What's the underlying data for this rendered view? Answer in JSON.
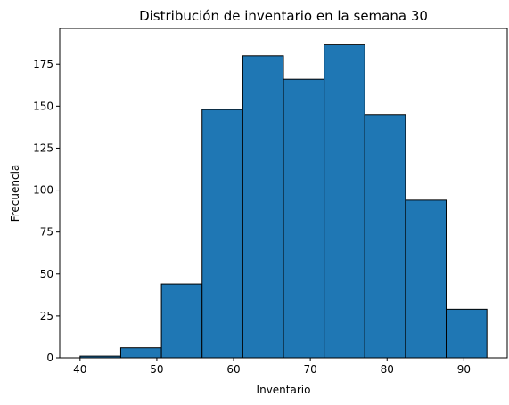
{
  "chart_data": {
    "type": "bar",
    "title": "Distribución de inventario en la semana 30",
    "xlabel": "Inventario",
    "ylabel": "Frecuencia",
    "xlim": [
      37.35,
      95.65
    ],
    "ylim": [
      0,
      196.35
    ],
    "xticks": [
      "40",
      "50",
      "60",
      "70",
      "80",
      "90"
    ],
    "yticks": [
      "0",
      "25",
      "50",
      "75",
      "100",
      "125",
      "150",
      "175"
    ],
    "bin_edges": [
      40,
      45.3,
      50.6,
      55.9,
      61.2,
      66.5,
      71.8,
      77.1,
      82.4,
      87.7,
      93
    ],
    "values": [
      1,
      6,
      44,
      148,
      180,
      166,
      187,
      145,
      94,
      29
    ],
    "bar_color": "#1f77b4",
    "edge_color": "#000000",
    "grid": false
  }
}
